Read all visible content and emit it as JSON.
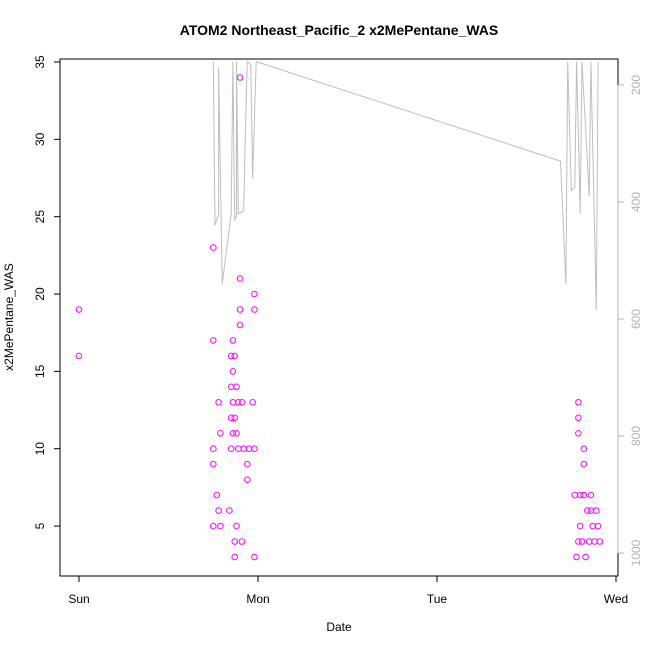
{
  "chart_data": {
    "type": "scatter",
    "title": "ATOM2 Northeast_Pacific_2 x2MePentane_WAS",
    "xlabel": "Date",
    "ylabel": "x2MePentane_WAS",
    "x_unit": "days",
    "xlim": [
      -0.02,
      3.0
    ],
    "ylim": [
      2.5,
      35.3
    ],
    "x_ticks": [
      {
        "value": 0,
        "label": "Sun"
      },
      {
        "value": 1,
        "label": "Mon"
      },
      {
        "value": 2,
        "label": "Tue"
      },
      {
        "value": 3,
        "label": "Wed"
      }
    ],
    "y_ticks": [
      5,
      10,
      15,
      20,
      25,
      30,
      35
    ],
    "right_axis": {
      "color": "#b3b3b3",
      "reversed": true,
      "range": [
        160,
        1020
      ],
      "ticks": [
        200,
        400,
        600,
        800,
        1000
      ]
    },
    "grid": false,
    "series": [
      {
        "kind": "points",
        "color": "#ff00ff",
        "marker": "open-circle",
        "points": [
          [
            0.0,
            19
          ],
          [
            0.0,
            16
          ],
          [
            0.75,
            23
          ],
          [
            0.75,
            17
          ],
          [
            0.75,
            10
          ],
          [
            0.75,
            9
          ],
          [
            0.75,
            5
          ],
          [
            0.77,
            7
          ],
          [
            0.78,
            13
          ],
          [
            0.78,
            6
          ],
          [
            0.79,
            11
          ],
          [
            0.79,
            5
          ],
          [
            0.84,
            6
          ],
          [
            0.85,
            16
          ],
          [
            0.85,
            14
          ],
          [
            0.85,
            12
          ],
          [
            0.85,
            10
          ],
          [
            0.86,
            17
          ],
          [
            0.86,
            15
          ],
          [
            0.86,
            13
          ],
          [
            0.86,
            11
          ],
          [
            0.87,
            16
          ],
          [
            0.87,
            12
          ],
          [
            0.87,
            4
          ],
          [
            0.87,
            3
          ],
          [
            0.88,
            14
          ],
          [
            0.88,
            11
          ],
          [
            0.88,
            5
          ],
          [
            0.89,
            13
          ],
          [
            0.89,
            10
          ],
          [
            0.9,
            34
          ],
          [
            0.9,
            21
          ],
          [
            0.9,
            19
          ],
          [
            0.9,
            18
          ],
          [
            0.91,
            13
          ],
          [
            0.91,
            4
          ],
          [
            0.92,
            10
          ],
          [
            0.94,
            9
          ],
          [
            0.94,
            8
          ],
          [
            0.95,
            10
          ],
          [
            0.97,
            13
          ],
          [
            0.98,
            20
          ],
          [
            0.98,
            19
          ],
          [
            0.98,
            10
          ],
          [
            0.98,
            3
          ],
          [
            2.77,
            7
          ],
          [
            2.78,
            3
          ],
          [
            2.79,
            13
          ],
          [
            2.79,
            12
          ],
          [
            2.79,
            11
          ],
          [
            2.79,
            4
          ],
          [
            2.8,
            7
          ],
          [
            2.8,
            5
          ],
          [
            2.81,
            4
          ],
          [
            2.82,
            10
          ],
          [
            2.82,
            9
          ],
          [
            2.82,
            7
          ],
          [
            2.83,
            3
          ],
          [
            2.84,
            6
          ],
          [
            2.85,
            4
          ],
          [
            2.86,
            7
          ],
          [
            2.86,
            6
          ],
          [
            2.87,
            5
          ],
          [
            2.88,
            4
          ],
          [
            2.89,
            6
          ],
          [
            2.9,
            5
          ],
          [
            2.91,
            4
          ]
        ]
      },
      {
        "kind": "line",
        "axis": "right",
        "color": "#bebebe",
        "points": [
          [
            0.75,
            160
          ],
          [
            0.76,
            440
          ],
          [
            0.78,
            420
          ],
          [
            0.78,
            170
          ],
          [
            0.8,
            540
          ],
          [
            0.85,
            420
          ],
          [
            0.86,
            160
          ],
          [
            0.87,
            430
          ],
          [
            0.88,
            425
          ],
          [
            0.88,
            160
          ],
          [
            0.89,
            420
          ],
          [
            0.92,
            415
          ],
          [
            0.93,
            270
          ],
          [
            0.94,
            160
          ],
          [
            0.96,
            165
          ],
          [
            0.97,
            360
          ],
          [
            0.99,
            160
          ],
          [
            2.69,
            330
          ],
          [
            2.72,
            540
          ],
          [
            2.73,
            160
          ],
          [
            2.75,
            380
          ],
          [
            2.77,
            375
          ],
          [
            2.78,
            160
          ],
          [
            2.8,
            420
          ],
          [
            2.81,
            160
          ],
          [
            2.85,
            390
          ],
          [
            2.86,
            160
          ],
          [
            2.89,
            585
          ],
          [
            2.9,
            160
          ]
        ]
      }
    ]
  }
}
